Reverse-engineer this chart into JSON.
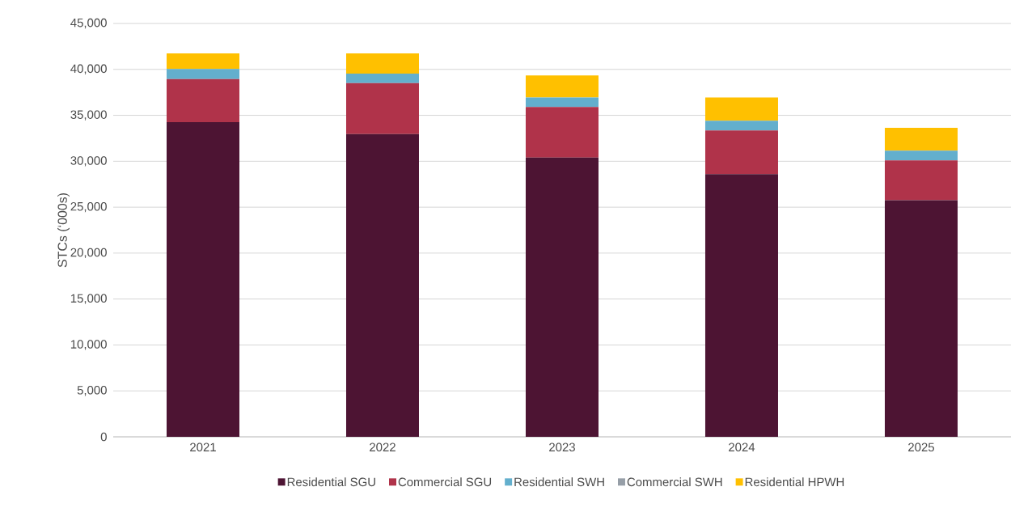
{
  "chart_data": {
    "type": "bar",
    "stacked": true,
    "ylabel": "STCs (‘000s)",
    "categories": [
      "2021",
      "2022",
      "2023",
      "2024",
      "2025"
    ],
    "series": [
      {
        "name": "Residential SGU",
        "color": "#4d1433",
        "values": [
          34250,
          32950,
          30400,
          28600,
          25750
        ]
      },
      {
        "name": "Commercial SGU",
        "color": "#b0334a",
        "values": [
          4700,
          5550,
          5500,
          4750,
          4350
        ]
      },
      {
        "name": "Residential SWH",
        "color": "#63afcd",
        "values": [
          1100,
          1050,
          1050,
          1050,
          1050
        ]
      },
      {
        "name": "Commercial SWH",
        "color": "#969ea7",
        "values": [
          0,
          0,
          0,
          0,
          0
        ]
      },
      {
        "name": "Residential HPWH",
        "color": "#ffc000",
        "values": [
          1700,
          2200,
          2400,
          2550,
          2500
        ]
      }
    ],
    "ylim": [
      0,
      45000
    ],
    "yticks": [
      0,
      {
        "value": 5000,
        "label": "5,000"
      },
      {
        "value": 10000,
        "label": "10,000"
      },
      {
        "value": 15000,
        "label": "15,000"
      },
      {
        "value": 20000,
        "label": "20,000"
      },
      {
        "value": 25000,
        "label": "25,000"
      },
      {
        "value": 30000,
        "label": "30,000"
      },
      {
        "value": 35000,
        "label": "35,000"
      },
      {
        "value": 40000,
        "label": "40,000"
      },
      {
        "value": 45000,
        "label": "45,000"
      }
    ],
    "grid": "y",
    "legend": "bottom"
  }
}
